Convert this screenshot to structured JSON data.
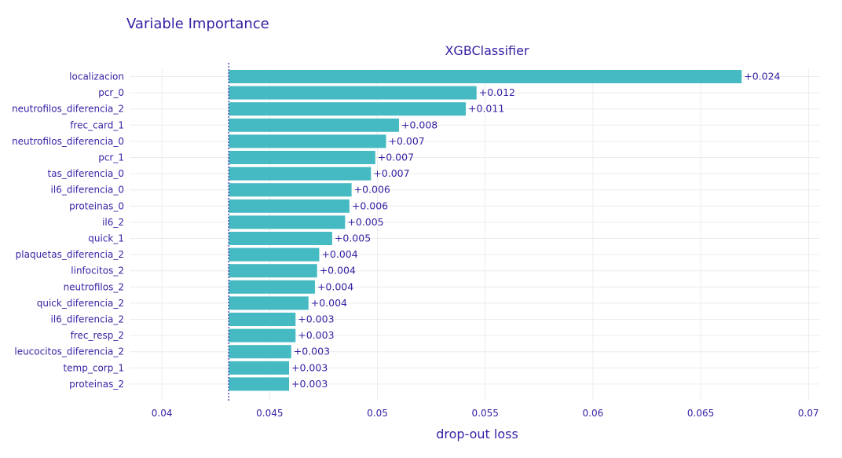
{
  "chart_data": {
    "type": "bar",
    "title": "Variable Importance",
    "subtitle": "XGBClassifier",
    "xlabel": "drop-out loss",
    "baseline": 0.0431,
    "xlim": [
      0.0385,
      0.0705
    ],
    "xticks": [
      0.04,
      0.045,
      0.05,
      0.055,
      0.06,
      0.065,
      0.07
    ],
    "xtick_labels": [
      "0.04",
      "0.045",
      "0.05",
      "0.055",
      "0.06",
      "0.065",
      "0.07"
    ],
    "bar_color": "#46bac2",
    "text_color": "#371ea3",
    "categories": [
      "localizacion",
      "pcr_0",
      "neutrofilos_diferencia_2",
      "frec_card_1",
      "neutrofilos_diferencia_0",
      "pcr_1",
      "tas_diferencia_0",
      "il6_diferencia_0",
      "proteinas_0",
      "il6_2",
      "quick_1",
      "plaquetas_diferencia_2",
      "linfocitos_2",
      "neutrofilos_2",
      "quick_diferencia_2",
      "il6_diferencia_2",
      "frec_resp_2",
      "leucocitos_diferencia_2",
      "temp_corp_1",
      "proteinas_2"
    ],
    "values": [
      0.0669,
      0.0546,
      0.0541,
      0.051,
      0.0504,
      0.0499,
      0.0497,
      0.0488,
      0.0487,
      0.0485,
      0.0479,
      0.0473,
      0.0472,
      0.0471,
      0.0468,
      0.0462,
      0.0462,
      0.046,
      0.0459,
      0.0459
    ],
    "labels": [
      "+0.024",
      "+0.012",
      "+0.011",
      "+0.008",
      "+0.007",
      "+0.007",
      "+0.007",
      "+0.006",
      "+0.006",
      "+0.005",
      "+0.005",
      "+0.004",
      "+0.004",
      "+0.004",
      "+0.004",
      "+0.003",
      "+0.003",
      "+0.003",
      "+0.003",
      "+0.003"
    ]
  }
}
